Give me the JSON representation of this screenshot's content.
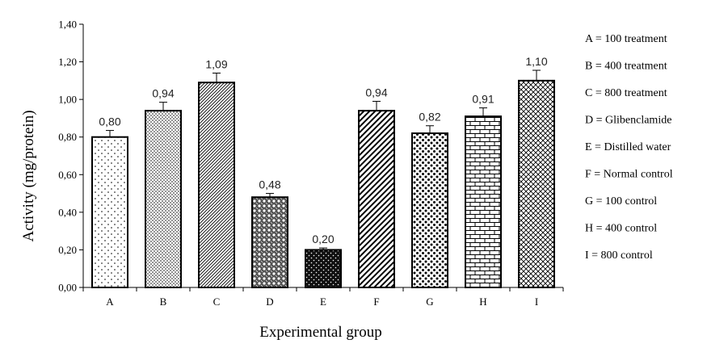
{
  "chart_data": {
    "type": "bar",
    "title": "",
    "xlabel": "Experimental group",
    "ylabel": "Activity (mg/protein)",
    "ylim": [
      0,
      1.4
    ],
    "yticks": [
      "0,00",
      "0,20",
      "0,40",
      "0,60",
      "0,80",
      "1,00",
      "1,20",
      "1,40"
    ],
    "categories": [
      "A",
      "B",
      "C",
      "D",
      "E",
      "F",
      "G",
      "H",
      "I"
    ],
    "values": [
      0.8,
      0.94,
      1.09,
      0.48,
      0.2,
      0.94,
      0.82,
      0.91,
      1.1
    ],
    "value_labels": [
      "0,80",
      "0,94",
      "1,09",
      "0,48",
      "0,20",
      "0,94",
      "0,82",
      "0,91",
      "1,10"
    ],
    "error": [
      0.035,
      0.045,
      0.05,
      0.02,
      0.01,
      0.05,
      0.04,
      0.045,
      0.055
    ],
    "legend_position": "right",
    "legend": [
      "A = 100 treatment",
      "B = 400 treatment",
      "C = 800 treatment",
      "D = Glibenclamide",
      "E = Distilled water",
      "F = Normal control",
      "G = 100 control",
      "H = 400 control",
      "I = 800 control"
    ]
  }
}
